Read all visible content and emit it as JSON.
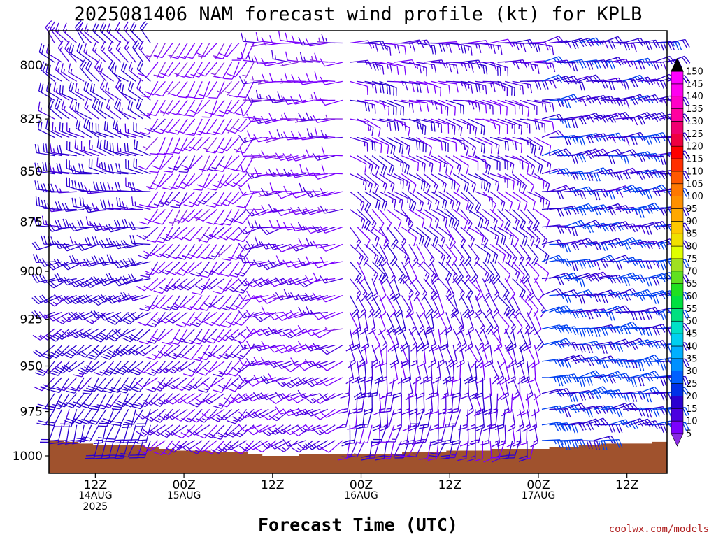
{
  "chart_data": {
    "type": "wind-barb-profile",
    "title": "2025081406 NAM forecast wind profile (kt) for KPLB",
    "xlabel": "Forecast Time (UTC)",
    "ylabel": "",
    "x_ticks": [
      {
        "hour": 6,
        "lines": [
          "12Z",
          "14AUG",
          "2025"
        ]
      },
      {
        "hour": 18,
        "lines": [
          "00Z",
          "15AUG"
        ]
      },
      {
        "hour": 30,
        "lines": [
          "12Z"
        ]
      },
      {
        "hour": 42,
        "lines": [
          "00Z",
          "16AUG"
        ]
      },
      {
        "hour": 54,
        "lines": [
          "12Z"
        ]
      },
      {
        "hour": 66,
        "lines": [
          "00Z",
          "17AUG"
        ]
      },
      {
        "hour": 78,
        "lines": [
          "12Z"
        ]
      }
    ],
    "x_range_hours": [
      0,
      84
    ],
    "y_ticks": [
      800,
      825,
      850,
      875,
      900,
      925,
      950,
      975,
      1000
    ],
    "y_range_hpa": [
      783,
      1009
    ],
    "y_scale": "log-pressure",
    "colorbar": {
      "levels": [
        5,
        10,
        15,
        20,
        25,
        30,
        35,
        40,
        45,
        50,
        55,
        60,
        65,
        70,
        75,
        80,
        85,
        90,
        95,
        100,
        105,
        110,
        115,
        120,
        125,
        130,
        135,
        140,
        145,
        150
      ],
      "colors": [
        "#8a2be2",
        "#7b00ff",
        "#4b00e0",
        "#2a00d0",
        "#0030e8",
        "#0060ff",
        "#0090ff",
        "#00b0ff",
        "#00d0f0",
        "#00e0c8",
        "#00e080",
        "#00e040",
        "#20e020",
        "#60e020",
        "#a0e020",
        "#e0ff00",
        "#f0e000",
        "#ffc800",
        "#ffa800",
        "#ff9000",
        "#ff7800",
        "#ff5800",
        "#ff3000",
        "#ff0000",
        "#f00040",
        "#f00070",
        "#ff00a0",
        "#ff00c8",
        "#ff00f0",
        "#ff00ff"
      ]
    },
    "time_step_hours": 1,
    "wind_sampling": "barbs plotted every 1 h on 25 pressure levels (790-1000 hPa)",
    "wind_regimes": [
      {
        "hours": [
          0,
          14
        ],
        "upper_dir_deg": 320,
        "upper_kt": [
          15,
          20
        ],
        "lower_dir_deg": 190,
        "lower_kt": [
          10,
          20
        ]
      },
      {
        "hours": [
          14,
          28
        ],
        "upper_dir_deg": 210,
        "upper_kt": [
          5,
          12
        ],
        "lower_dir_deg": 230,
        "lower_kt": [
          5,
          15
        ]
      },
      {
        "hours": [
          28,
          40
        ],
        "upper_dir_deg": 270,
        "upper_kt": [
          5,
          15
        ],
        "lower_dir_deg": 240,
        "lower_kt": [
          5,
          12
        ]
      },
      {
        "hours": [
          40,
          56
        ],
        "upper_dir_deg": 90,
        "upper_kt": [
          10,
          20
        ],
        "lower_dir_deg": 200,
        "lower_kt": [
          5,
          10
        ]
      },
      {
        "hours": [
          56,
          66
        ],
        "upper_dir_deg": 90,
        "upper_kt": [
          10,
          20
        ],
        "lower_dir_deg": 190,
        "lower_kt": [
          5,
          10
        ]
      },
      {
        "hours": [
          66,
          84
        ],
        "upper_dir_deg": 80,
        "upper_kt": [
          15,
          25
        ],
        "lower_dir_deg": 80,
        "lower_kt": [
          15,
          22
        ]
      }
    ],
    "surface_pressure_hpa": [
      991,
      991,
      992,
      992,
      993,
      993,
      994,
      994,
      994,
      994,
      994,
      994,
      994,
      995,
      995,
      996,
      996,
      997,
      997,
      997,
      997,
      997,
      998,
      998,
      998,
      998,
      998,
      999,
      999,
      1000,
      1000,
      1000,
      1000,
      1000,
      999,
      999,
      999,
      999,
      999,
      999,
      999,
      999,
      999,
      999,
      999,
      999,
      999,
      999,
      998,
      998,
      998,
      998,
      998,
      998,
      997,
      997,
      997,
      997,
      997,
      997,
      996,
      996,
      996,
      996,
      996,
      996,
      996,
      996,
      995,
      995,
      995,
      995,
      994,
      994,
      994,
      993,
      993,
      993,
      993,
      993,
      993,
      993,
      992,
      992
    ]
  },
  "credit": "coolwx.com/models"
}
